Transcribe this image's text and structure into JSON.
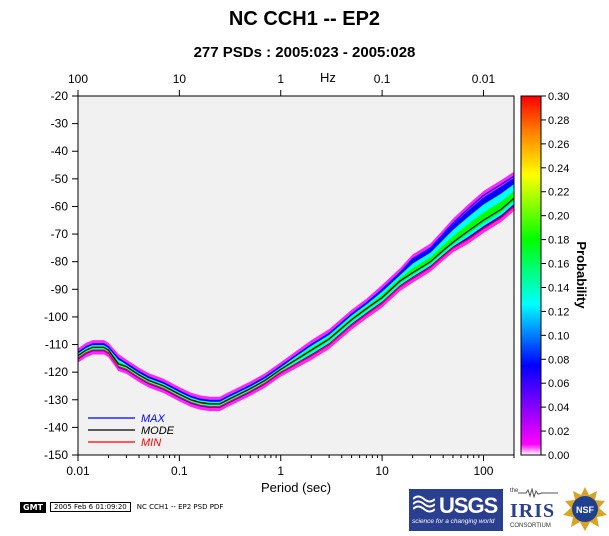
{
  "header": {
    "title": "NC CCH1 -- EP2",
    "subtitle": "277 PSDs : 2005:023 - 2005:028"
  },
  "footer": {
    "gmt_label": "GMT",
    "timestamp": "2005 Feb  6 01:09:20",
    "caption": "NC CCH1 -- EP2 PSD PDF"
  },
  "logos": {
    "usgs_text": "USGS",
    "usgs_tagline": "science for a changing world",
    "iris_the": "the",
    "iris_name": "IRIS",
    "iris_consortium": "CONSORTIUM",
    "nsf_text": "NSF"
  },
  "chart_data": {
    "type": "heatmap",
    "title": "NC CCH1 -- EP2",
    "subtitle": "277 PSDs : 2005:023 - 2005:028",
    "xlabel": "Period (sec)",
    "top_axis_label": "Hz",
    "x_scale": "log",
    "xlim": [
      0.01,
      200
    ],
    "ylim": [
      -150,
      -20
    ],
    "x_ticks": [
      0.01,
      0.1,
      1,
      10,
      100
    ],
    "x_tick_labels": [
      "0.01",
      "0.1",
      "1",
      "10",
      "100"
    ],
    "top_ticks_hz": [
      100,
      10,
      1,
      0.1,
      0.01
    ],
    "top_tick_labels": [
      "100",
      "10",
      "1",
      "0.1",
      "0.01"
    ],
    "y_ticks": [
      -20,
      -30,
      -40,
      -50,
      -60,
      -70,
      -80,
      -90,
      -100,
      -110,
      -120,
      -130,
      -140,
      -150
    ],
    "y_tick_labels": [
      "-20",
      "-30",
      "-40",
      "-50",
      "-60",
      "-70",
      "-80",
      "-90",
      "-100",
      "-110",
      "-120",
      "-130",
      "-140",
      "-150"
    ],
    "colorbar": {
      "label": "Probability",
      "range": [
        0,
        0.3
      ],
      "ticks": [
        0,
        0.02,
        0.04,
        0.06,
        0.08,
        0.1,
        0.12,
        0.14,
        0.16,
        0.18,
        0.2,
        0.22,
        0.24,
        0.26,
        0.28,
        0.3
      ],
      "tick_labels": [
        "0.00",
        "0.02",
        "0.04",
        "0.06",
        "0.08",
        "0.10",
        "0.12",
        "0.14",
        "0.16",
        "0.18",
        "0.20",
        "0.22",
        "0.24",
        "0.26",
        "0.28",
        "0.30"
      ],
      "colors": [
        "#ffffff",
        "#ff00ff",
        "#0000ff",
        "#00ffff",
        "#00ff00",
        "#ffff00",
        "#ff8000",
        "#ff0000"
      ]
    },
    "legend": {
      "placement": "bottom-left",
      "entries": [
        {
          "label": "MAX",
          "color": "#0000ff"
        },
        {
          "label": "MODE",
          "color": "#000000"
        },
        {
          "label": "MIN",
          "color": "#ff0000"
        }
      ]
    },
    "series": [
      {
        "name": "MAX",
        "x": [
          0.01,
          0.012,
          0.014,
          0.016,
          0.018,
          0.02,
          0.025,
          0.03,
          0.04,
          0.05,
          0.07,
          0.1,
          0.13,
          0.16,
          0.2,
          0.25,
          0.3,
          0.5,
          0.7,
          1,
          2,
          3,
          5,
          7,
          10,
          15,
          20,
          30,
          40,
          50,
          70,
          100,
          150,
          200
        ],
        "y": [
          -113,
          -111,
          -110,
          -110,
          -110,
          -111,
          -115,
          -117,
          -120,
          -122,
          -124,
          -127,
          -129,
          -130,
          -130.5,
          -130.5,
          -129,
          -125,
          -122,
          -118,
          -110,
          -106,
          -99,
          -95,
          -90,
          -84,
          -79,
          -75,
          -70,
          -66,
          -61,
          -56,
          -52,
          -49
        ]
      },
      {
        "name": "MODE",
        "x": [
          0.01,
          0.012,
          0.014,
          0.016,
          0.018,
          0.02,
          0.025,
          0.03,
          0.04,
          0.05,
          0.07,
          0.1,
          0.13,
          0.16,
          0.2,
          0.25,
          0.3,
          0.5,
          0.7,
          1,
          2,
          3,
          5,
          7,
          10,
          15,
          20,
          30,
          40,
          50,
          70,
          100,
          150,
          200
        ],
        "y": [
          -114,
          -112,
          -111,
          -111,
          -111,
          -112,
          -117,
          -118,
          -121,
          -123,
          -125,
          -128,
          -130,
          -131,
          -131.5,
          -131.5,
          -130,
          -126,
          -123,
          -119,
          -112,
          -108,
          -101,
          -97,
          -93,
          -87,
          -84,
          -80,
          -76,
          -73,
          -69,
          -65,
          -61,
          -57
        ]
      },
      {
        "name": "MIN",
        "x": [
          0.01,
          0.012,
          0.014,
          0.016,
          0.018,
          0.02,
          0.025,
          0.03,
          0.04,
          0.05,
          0.07,
          0.1,
          0.13,
          0.16,
          0.2,
          0.25,
          0.3,
          0.5,
          0.7,
          1,
          2,
          3,
          5,
          7,
          10,
          15,
          20,
          30,
          40,
          50,
          70,
          100,
          150,
          200
        ],
        "y": [
          -115,
          -113,
          -112,
          -112,
          -112,
          -113,
          -118,
          -119,
          -122,
          -124,
          -126,
          -129,
          -131,
          -132,
          -132.5,
          -132.5,
          -131,
          -127,
          -124,
          -120,
          -114,
          -110,
          -103,
          -99,
          -95,
          -89,
          -86,
          -82,
          -78,
          -75,
          -72,
          -68,
          -64,
          -60
        ]
      }
    ]
  }
}
